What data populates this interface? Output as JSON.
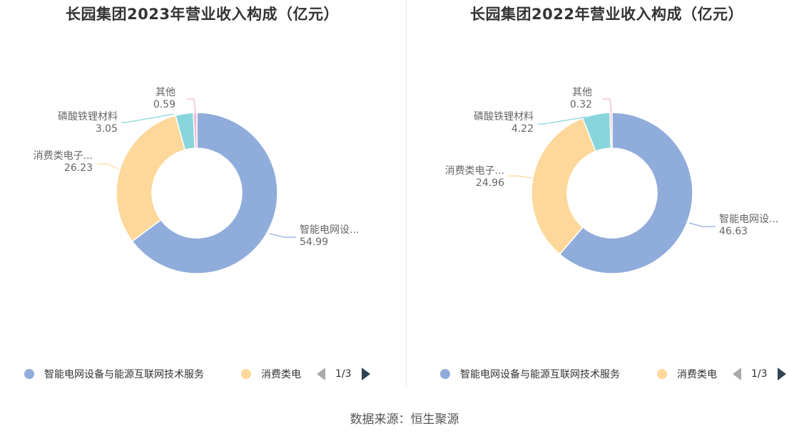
{
  "colors": {
    "smart_grid": "#8facdb",
    "consumer": "#fed89a",
    "lfp": "#88d6dc",
    "other": "#f0b6d0"
  },
  "pager": {
    "text": "1/3"
  },
  "source": "数据来源：恒生聚源",
  "chart_data": [
    {
      "type": "pie",
      "title": "长园集团2023年营业收入构成（亿元）",
      "legend": [
        "智能电网设备与能源互联网技术服务",
        "消费类电"
      ],
      "slices": [
        {
          "label": "智能电网设...",
          "full_name": "智能电网设备与能源互联网技术服务",
          "value": 54.99,
          "color": "#8facdb"
        },
        {
          "label": "消费类电子...",
          "value": 26.23,
          "color": "#fed89a"
        },
        {
          "label": "磷酸铁锂材料",
          "value": 3.05,
          "color": "#88d6dc"
        },
        {
          "label": "其他",
          "value": 0.59,
          "color": "#f0b6d0"
        }
      ]
    },
    {
      "type": "pie",
      "title": "长园集团2022年营业收入构成（亿元）",
      "legend": [
        "智能电网设备与能源互联网技术服务",
        "消费类电"
      ],
      "slices": [
        {
          "label": "智能电网设...",
          "full_name": "智能电网设备与能源互联网技术服务",
          "value": 46.63,
          "color": "#8facdb"
        },
        {
          "label": "消费类电子...",
          "value": 24.96,
          "color": "#fed89a"
        },
        {
          "label": "磷酸铁锂材料",
          "value": 4.22,
          "color": "#88d6dc"
        },
        {
          "label": "其他",
          "value": 0.32,
          "color": "#f0b6d0"
        }
      ]
    }
  ]
}
